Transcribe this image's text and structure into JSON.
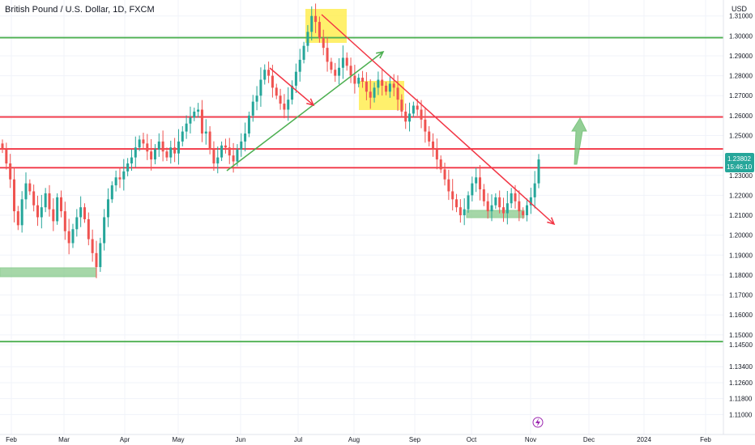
{
  "symbol_title": "British Pound / U.S. Dollar, 1D, FXCM",
  "currency_label": "USD",
  "colors": {
    "up": "#26a69a",
    "down": "#ef5350",
    "support_line": "#4caf50",
    "resistance_line": "#f23645",
    "zone_green": "#81c784",
    "zone_yellow": "#ffeb3b",
    "grid": "#f0f3fa",
    "axis_text": "#131722",
    "price_tag_teal": "#26a69a"
  },
  "footer_icon": "lightning-icon",
  "chart_data": {
    "type": "candlestick",
    "title": "British Pound / U.S. Dollar, 1D, FXCM",
    "ylim": [
      1.1,
      1.318
    ],
    "y_ticks": [
      "1.31000",
      "1.30000",
      "1.29000",
      "1.28000",
      "1.27000",
      "1.26000",
      "1.25000",
      "1.24000",
      "1.23000",
      "1.22000",
      "1.21000",
      "1.20000",
      "1.19000",
      "1.18000",
      "1.17000",
      "1.16000",
      "1.15000",
      "1.14500",
      "1.13400",
      "1.12600",
      "1.11800",
      "1.11000"
    ],
    "x_ticks": [
      "Feb",
      "Mar",
      "Apr",
      "May",
      "Jun",
      "Jul",
      "Aug",
      "Sep",
      "Oct",
      "Nov",
      "Dec",
      "2024",
      "Feb"
    ],
    "grid": true,
    "horizontal_levels": [
      {
        "value": 1.2991,
        "label": "1.29910",
        "color": "green"
      },
      {
        "value": 1.25932,
        "label": "1.25932",
        "color": "red"
      },
      {
        "value": 1.24327,
        "label": "1.24327",
        "color": "red"
      },
      {
        "value": 1.23383,
        "label": "1.23383",
        "color": "red"
      },
      {
        "value": 1.1466,
        "label": "1.14660",
        "color": "green"
      }
    ],
    "last_price": {
      "value": "1.23802",
      "countdown": "15:46:10"
    },
    "ohlc_path": [
      1.243,
      1.236,
      1.228,
      1.212,
      1.205,
      1.218,
      1.226,
      1.222,
      1.215,
      1.209,
      1.214,
      1.221,
      1.213,
      1.207,
      1.219,
      1.212,
      1.202,
      1.196,
      1.203,
      1.209,
      1.214,
      1.208,
      1.198,
      1.191,
      1.184,
      1.196,
      1.209,
      1.218,
      1.225,
      1.229,
      1.228,
      1.232,
      1.236,
      1.239,
      1.244,
      1.248,
      1.246,
      1.242,
      1.238,
      1.243,
      1.247,
      1.242,
      1.239,
      1.244,
      1.241,
      1.247,
      1.252,
      1.256,
      1.259,
      1.262,
      1.263,
      1.251,
      1.252,
      1.243,
      1.236,
      1.239,
      1.245,
      1.244,
      1.24,
      1.237,
      1.243,
      1.247,
      1.251,
      1.26,
      1.267,
      1.27,
      1.278,
      1.283,
      1.28,
      1.274,
      1.27,
      1.266,
      1.263,
      1.268,
      1.275,
      1.282,
      1.288,
      1.295,
      1.302,
      1.31,
      1.307,
      1.299,
      1.294,
      1.287,
      1.283,
      1.28,
      1.284,
      1.289,
      1.285,
      1.28,
      1.276,
      1.279,
      1.277,
      1.272,
      1.269,
      1.274,
      1.278,
      1.275,
      1.272,
      1.276,
      1.274,
      1.268,
      1.262,
      1.257,
      1.261,
      1.265,
      1.263,
      1.258,
      1.252,
      1.247,
      1.243,
      1.238,
      1.233,
      1.228,
      1.222,
      1.218,
      1.214,
      1.21,
      1.213,
      1.22,
      1.226,
      1.229,
      1.223,
      1.217,
      1.212,
      1.215,
      1.219,
      1.214,
      1.211,
      1.216,
      1.221,
      1.217,
      1.212,
      1.21,
      1.215,
      1.219,
      1.226,
      1.238
    ]
  }
}
